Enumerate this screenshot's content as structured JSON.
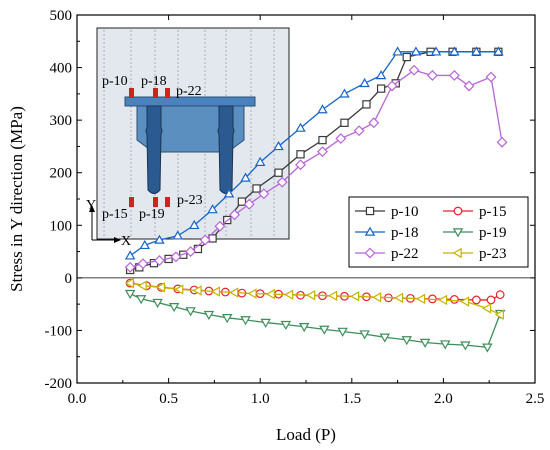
{
  "chart_data": {
    "type": "line",
    "xlabel": "Load (P)",
    "ylabel": "Stress in Y direction (MPa)",
    "xlim": [
      0.0,
      2.5
    ],
    "ylim": [
      -200,
      500
    ],
    "xticks": [
      "0.0",
      "0.5",
      "1.0",
      "1.5",
      "2.0",
      "2.5"
    ],
    "yticks": [
      "-200",
      "-100",
      "0",
      "100",
      "200",
      "300",
      "400",
      "500"
    ],
    "grid": false,
    "legend_position": "center-right",
    "series": [
      {
        "name": "p-10",
        "color": "#3a3a3a",
        "marker": "square",
        "x": [
          0.29,
          0.34,
          0.42,
          0.5,
          0.58,
          0.66,
          0.74,
          0.82,
          0.9,
          0.98,
          1.1,
          1.22,
          1.34,
          1.46,
          1.58,
          1.66,
          1.74,
          1.8,
          1.93,
          2.05,
          2.18,
          2.3
        ],
        "y": [
          15,
          20,
          28,
          36,
          44,
          55,
          75,
          110,
          145,
          170,
          200,
          235,
          262,
          295,
          330,
          360,
          370,
          420,
          430,
          430,
          430,
          430
        ]
      },
      {
        "name": "p-15",
        "color": "#e8202a",
        "marker": "circle",
        "x": [
          0.29,
          0.38,
          0.46,
          0.55,
          0.64,
          0.72,
          0.81,
          0.9,
          1.0,
          1.1,
          1.22,
          1.34,
          1.46,
          1.58,
          1.7,
          1.82,
          1.94,
          2.06,
          2.18,
          2.26,
          2.31
        ],
        "y": [
          -10,
          -15,
          -18,
          -21,
          -23,
          -25,
          -27,
          -29,
          -30,
          -31,
          -33,
          -34,
          -35,
          -36,
          -38,
          -39,
          -40,
          -41,
          -42,
          -42,
          -32
        ]
      },
      {
        "name": "p-18",
        "color": "#1565c8",
        "marker": "triangle-up",
        "x": [
          0.29,
          0.37,
          0.45,
          0.55,
          0.64,
          0.74,
          0.83,
          0.92,
          1.0,
          1.1,
          1.22,
          1.34,
          1.46,
          1.57,
          1.66,
          1.75,
          1.85,
          1.96,
          2.06,
          2.18,
          2.3
        ],
        "y": [
          42,
          62,
          72,
          80,
          100,
          130,
          160,
          190,
          220,
          250,
          285,
          320,
          350,
          370,
          385,
          430,
          430,
          430,
          430,
          430,
          430
        ]
      },
      {
        "name": "p-19",
        "color": "#3d8f5a",
        "marker": "triangle-down",
        "x": [
          0.29,
          0.35,
          0.44,
          0.53,
          0.62,
          0.72,
          0.82,
          0.92,
          1.03,
          1.14,
          1.24,
          1.35,
          1.45,
          1.57,
          1.68,
          1.8,
          1.9,
          2.01,
          2.12,
          2.24,
          2.31
        ],
        "y": [
          -30,
          -40,
          -47,
          -55,
          -63,
          -70,
          -76,
          -80,
          -85,
          -89,
          -93,
          -98,
          -102,
          -107,
          -113,
          -118,
          -123,
          -126,
          -128,
          -132,
          -68
        ]
      },
      {
        "name": "p-22",
        "color": "#b864d8",
        "marker": "diamond",
        "x": [
          0.29,
          0.36,
          0.45,
          0.54,
          0.62,
          0.7,
          0.78,
          0.86,
          0.94,
          1.02,
          1.12,
          1.22,
          1.34,
          1.44,
          1.54,
          1.62,
          1.72,
          1.84,
          1.94,
          2.06,
          2.14,
          2.26,
          2.32
        ],
        "y": [
          20,
          27,
          33,
          40,
          50,
          72,
          98,
          120,
          140,
          160,
          182,
          215,
          240,
          265,
          280,
          295,
          365,
          395,
          385,
          385,
          365,
          382,
          258
        ]
      },
      {
        "name": "p-23",
        "color": "#c8b000",
        "marker": "triangle-left",
        "x": [
          0.29,
          0.36,
          0.46,
          0.56,
          0.66,
          0.76,
          0.86,
          0.96,
          1.06,
          1.16,
          1.28,
          1.4,
          1.52,
          1.64,
          1.76,
          1.88,
          2.0,
          2.12,
          2.24,
          2.31
        ],
        "y": [
          -10,
          -15,
          -18,
          -22,
          -24,
          -26,
          -28,
          -30,
          -31,
          -32,
          -33,
          -34,
          -35,
          -37,
          -38,
          -40,
          -42,
          -45,
          -58,
          -70
        ]
      }
    ],
    "inset": {
      "labels": [
        "p-10",
        "p-18",
        "p-22",
        "p-15",
        "p-19",
        "p-23"
      ],
      "axis_labels": [
        "Y",
        "X"
      ]
    }
  }
}
